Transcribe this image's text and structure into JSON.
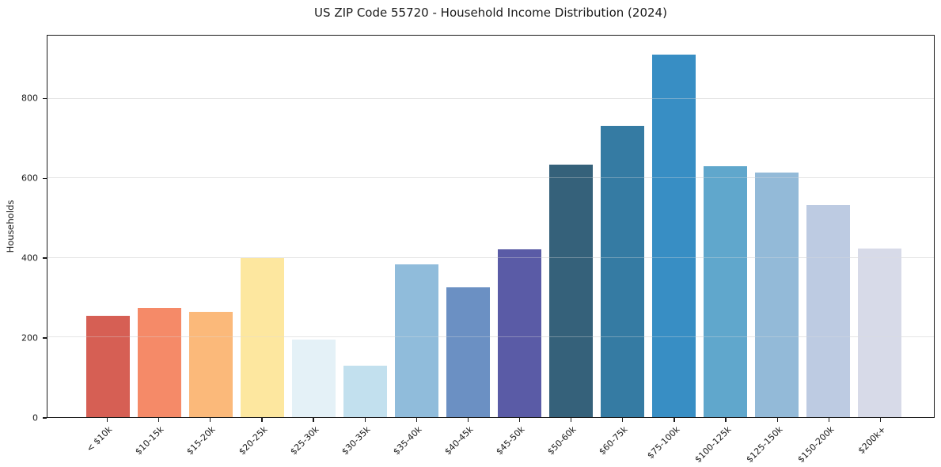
{
  "title": "US ZIP Code 55720 - Household Income Distribution (2024)",
  "chart_data": {
    "type": "bar",
    "title": "US ZIP Code 55720 - Household Income Distribution (2024)",
    "xlabel": "",
    "ylabel": "Households",
    "categories": [
      "< $10k",
      "$10-15k",
      "$15-20k",
      "$20-25k",
      "$25-30k",
      "$30-35k",
      "$35-40k",
      "$40-45k",
      "$45-50k",
      "$50-60k",
      "$60-75k",
      "$75-100k",
      "$100-125k",
      "$125-150k",
      "$150-200k",
      "$200k+"
    ],
    "values": [
      255,
      275,
      265,
      400,
      195,
      130,
      385,
      326,
      421,
      635,
      732,
      912,
      630,
      614,
      533,
      424
    ],
    "bar_colors": [
      "#d65f54",
      "#f58a68",
      "#fbb97a",
      "#fde79f",
      "#e4f1f7",
      "#c2e0ee",
      "#90bcdb",
      "#6b90c3",
      "#5a5ba6",
      "#35617a",
      "#357ba3",
      "#388ec4",
      "#60a7cc",
      "#93bad8",
      "#bdcbe2",
      "#d7dae8"
    ],
    "yticks": [
      0,
      200,
      400,
      600,
      800
    ],
    "ylim": [
      0,
      959
    ],
    "grid": "horizontal",
    "gridline_color": "rgba(222,222,222,0.65)",
    "x_tick_rotation": 45,
    "legend": "none",
    "bar_relative_width": 0.84
  },
  "style_colors": {
    "background": "#ffffff",
    "spine": "#1a1a1a",
    "text": "#1a1a1a"
  }
}
